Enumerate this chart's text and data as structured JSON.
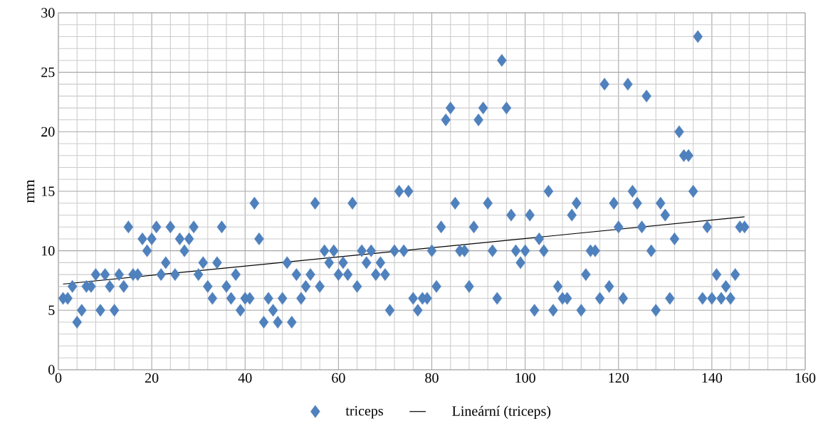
{
  "chart_data": {
    "type": "scatter",
    "ylabel": "mm",
    "xlim": [
      0,
      160
    ],
    "xticks": [
      0,
      20,
      40,
      60,
      80,
      100,
      120,
      140,
      160
    ],
    "ylim": [
      0,
      30
    ],
    "yticks": [
      0,
      5,
      10,
      15,
      20,
      25,
      30
    ],
    "grid": true,
    "legend": "bottom",
    "series": [
      {
        "name": "triceps",
        "type": "scatter",
        "marker": "diamond",
        "color": "#4f81bd",
        "x": [
          1,
          2,
          3,
          4,
          5,
          6,
          7,
          8,
          9,
          10,
          11,
          12,
          13,
          14,
          15,
          16,
          17,
          18,
          19,
          20,
          21,
          22,
          23,
          24,
          25,
          26,
          27,
          28,
          29,
          30,
          31,
          32,
          33,
          34,
          35,
          36,
          37,
          38,
          39,
          40,
          41,
          42,
          43,
          44,
          45,
          46,
          47,
          48,
          49,
          50,
          51,
          52,
          53,
          54,
          55,
          56,
          57,
          58,
          59,
          60,
          61,
          62,
          63,
          64,
          65,
          66,
          67,
          68,
          69,
          70,
          71,
          72,
          73,
          74,
          75,
          76,
          77,
          78,
          79,
          80,
          81,
          82,
          83,
          84,
          85,
          86,
          87,
          88,
          89,
          90,
          91,
          92,
          93,
          94,
          95,
          96,
          97,
          98,
          99,
          100,
          101,
          102,
          103,
          104,
          105,
          106,
          107,
          108,
          109,
          110,
          111,
          112,
          113,
          114,
          115,
          116,
          117,
          118,
          119,
          120,
          121,
          122,
          123,
          124,
          125,
          126,
          127,
          128,
          129,
          130,
          131,
          132,
          133,
          134,
          135,
          136,
          137,
          138,
          139,
          140,
          141,
          142,
          143,
          144,
          145,
          146,
          147
        ],
        "values": [
          6,
          6,
          7,
          4,
          5,
          7,
          7,
          8,
          5,
          8,
          7,
          5,
          8,
          7,
          12,
          8,
          8,
          11,
          10,
          11,
          12,
          8,
          9,
          12,
          8,
          11,
          10,
          11,
          12,
          8,
          9,
          7,
          6,
          9,
          12,
          7,
          6,
          8,
          5,
          6,
          6,
          14,
          11,
          4,
          6,
          5,
          4,
          6,
          9,
          4,
          8,
          6,
          7,
          8,
          14,
          7,
          10,
          9,
          10,
          8,
          9,
          8,
          14,
          7,
          10,
          9,
          10,
          8,
          9,
          8,
          5,
          10,
          15,
          10,
          15,
          6,
          5,
          6,
          6,
          10,
          7,
          12,
          21,
          22,
          14,
          10,
          10,
          7,
          12,
          21,
          22,
          14,
          10,
          6,
          26,
          22,
          13,
          10,
          9,
          10,
          13,
          5,
          11,
          10,
          15,
          5,
          7,
          6,
          6,
          13,
          14,
          5,
          8,
          10,
          10,
          6,
          24,
          7,
          14,
          12,
          6,
          24,
          15,
          14,
          12,
          23,
          10,
          5,
          14,
          13,
          6,
          11,
          20,
          18,
          18,
          15,
          28,
          6,
          12,
          6,
          8,
          6,
          7,
          6,
          8,
          12,
          12
        ]
      },
      {
        "name": "Lineární (triceps)",
        "type": "line",
        "marker": "none",
        "line_style": "solid",
        "color": "#000000",
        "x": [
          1,
          147
        ],
        "values": [
          7.2,
          12.85
        ]
      }
    ]
  }
}
